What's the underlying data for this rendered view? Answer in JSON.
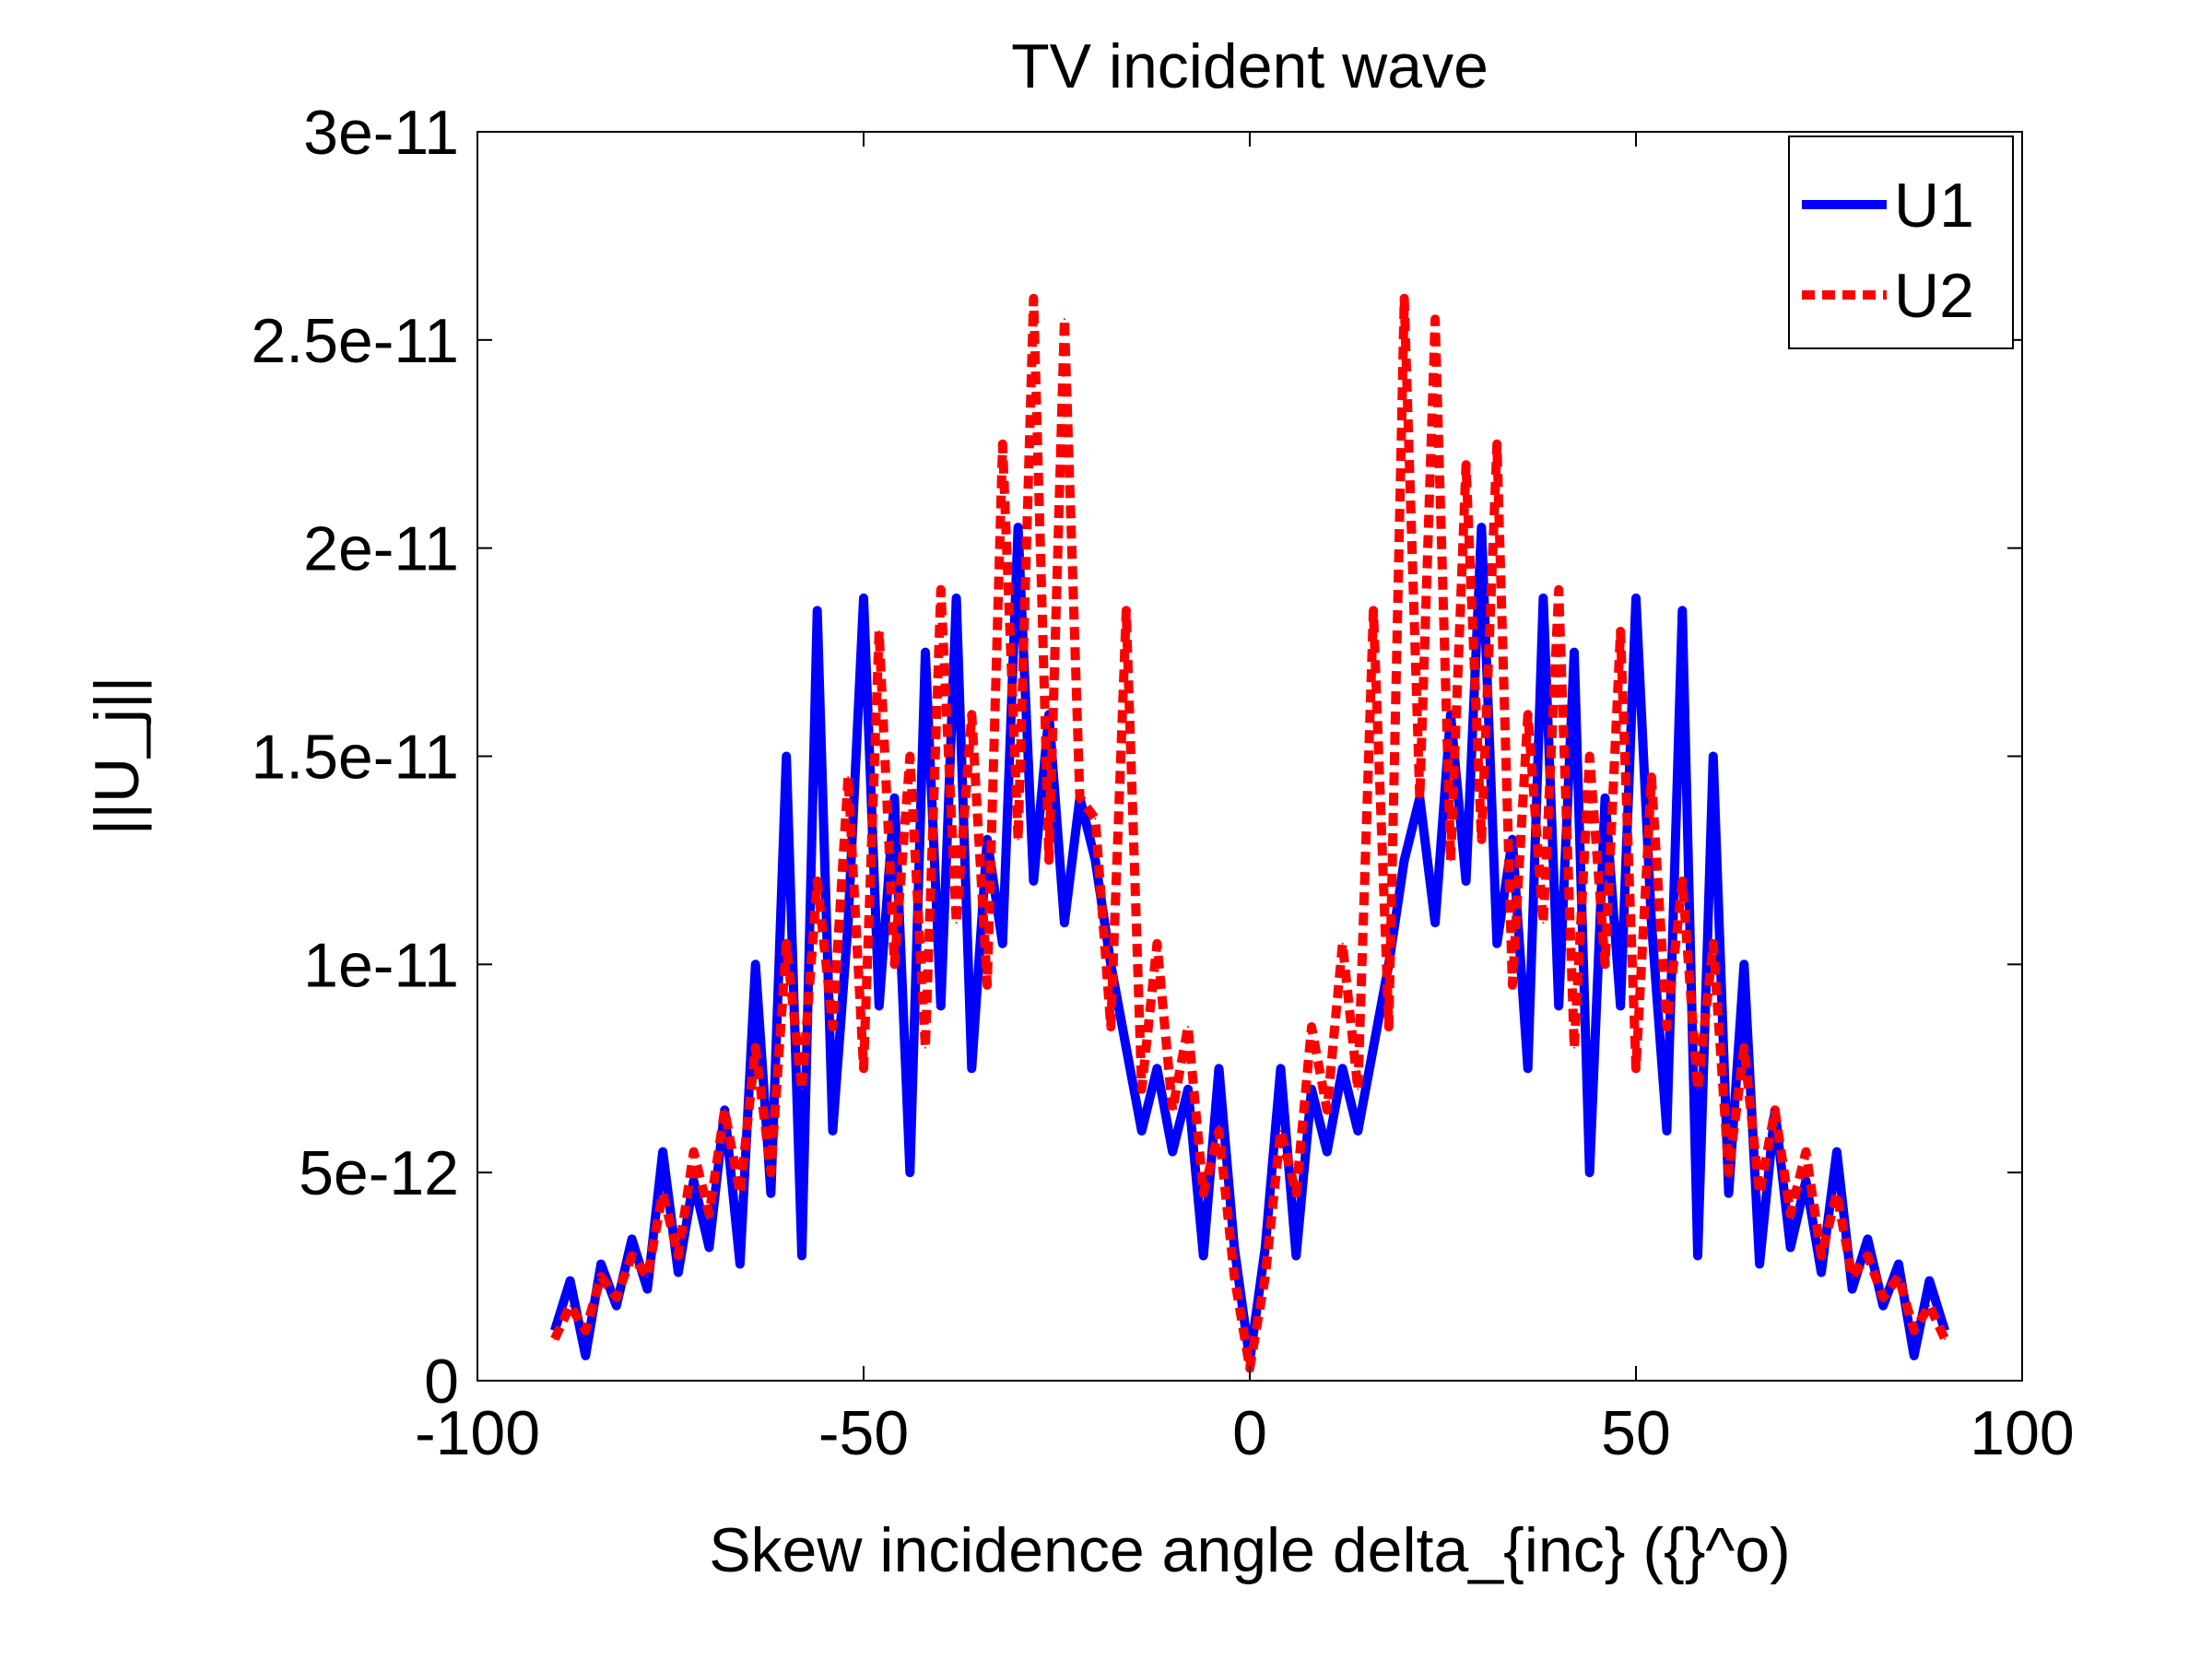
{
  "chart_data": {
    "type": "line",
    "title": "TV incident wave",
    "xlabel": "Skew incidence angle delta_{inc} ({}^o)",
    "ylabel": "||U_j||",
    "xlim": [
      -100,
      100
    ],
    "ylim": [
      0,
      3e-11
    ],
    "x_ticks": [
      -100,
      -50,
      0,
      50,
      100
    ],
    "x_tick_labels": [
      "-100",
      "-50",
      "0",
      "50",
      "100"
    ],
    "y_ticks": [
      0,
      5e-12,
      1e-11,
      1.5e-11,
      2e-11,
      2.5e-11,
      3e-11
    ],
    "y_tick_labels": [
      "0",
      "5e-12",
      "1e-11",
      "1.5e-11",
      "2e-11",
      "2.5e-11",
      "3e-11"
    ],
    "grid": false,
    "legend_position": "top-right",
    "x": [
      -90,
      -88,
      -86,
      -84,
      -82,
      -80,
      -78,
      -76,
      -74,
      -72,
      -70,
      -68,
      -66,
      -64,
      -62,
      -60,
      -58,
      -56,
      -54,
      -52,
      -50,
      -48,
      -46,
      -44,
      -42,
      -40,
      -38,
      -36,
      -34,
      -32,
      -30,
      -28,
      -26,
      -24,
      -22,
      -20,
      -18,
      -16,
      -14,
      -12,
      -10,
      -8,
      -6,
      -4,
      -2,
      0,
      2,
      4,
      6,
      8,
      10,
      12,
      14,
      16,
      18,
      20,
      22,
      24,
      26,
      28,
      30,
      32,
      34,
      36,
      38,
      40,
      42,
      44,
      46,
      48,
      50,
      52,
      54,
      56,
      58,
      60,
      62,
      64,
      66,
      68,
      70,
      72,
      74,
      76,
      78,
      80,
      82,
      84,
      86,
      88,
      90
    ],
    "series": [
      {
        "name": "U1",
        "color": "#0000ff",
        "style": "solid",
        "values": [
          1.2e-12,
          2.4e-12,
          6e-13,
          2.8e-12,
          1.8e-12,
          3.4e-12,
          2.2e-12,
          5.5e-12,
          2.6e-12,
          4.8e-12,
          3.2e-12,
          6.5e-12,
          2.8e-12,
          1e-11,
          4.5e-12,
          1.5e-11,
          3e-12,
          1.85e-11,
          6e-12,
          1.1e-11,
          1.88e-11,
          9e-12,
          1.4e-11,
          5e-12,
          1.75e-11,
          9e-12,
          1.88e-11,
          7.5e-12,
          1.3e-11,
          1.05e-11,
          2.05e-11,
          1.2e-11,
          1.6e-11,
          1.1e-11,
          1.4e-11,
          1.25e-11,
          1e-11,
          8e-12,
          6e-12,
          7.5e-12,
          5.5e-12,
          7e-12,
          3e-12,
          7.5e-12,
          3.2e-12,
          5e-13,
          3.2e-12,
          7.5e-12,
          3e-12,
          7e-12,
          5.5e-12,
          7.5e-12,
          6e-12,
          8e-12,
          1e-11,
          1.25e-11,
          1.4e-11,
          1.1e-11,
          1.6e-11,
          1.2e-11,
          2.05e-11,
          1.05e-11,
          1.3e-11,
          7.5e-12,
          1.88e-11,
          9e-12,
          1.75e-11,
          5e-12,
          1.4e-11,
          9e-12,
          1.88e-11,
          1.1e-11,
          6e-12,
          1.85e-11,
          3e-12,
          1.5e-11,
          4.5e-12,
          1e-11,
          2.8e-12,
          6.5e-12,
          3.2e-12,
          4.8e-12,
          2.6e-12,
          5.5e-12,
          2.2e-12,
          3.4e-12,
          1.8e-12,
          2.8e-12,
          6e-13,
          2.4e-12,
          1.2e-12
        ]
      },
      {
        "name": "U2",
        "color": "#ff0000",
        "style": "dashed",
        "values": [
          1e-12,
          1.8e-12,
          1.2e-12,
          2.5e-12,
          2e-12,
          3e-12,
          2.5e-12,
          4.5e-12,
          3e-12,
          5.5e-12,
          4e-12,
          6.5e-12,
          4.5e-12,
          8e-12,
          5e-12,
          1.05e-11,
          7e-12,
          1.2e-11,
          8.5e-12,
          1.45e-11,
          7.5e-12,
          1.8e-11,
          1e-11,
          1.5e-11,
          8e-12,
          1.9e-11,
          1.1e-11,
          1.6e-11,
          9.5e-12,
          2.25e-11,
          1.3e-11,
          2.6e-11,
          1.25e-11,
          2.55e-11,
          1.4e-11,
          1.35e-11,
          8.5e-12,
          1.85e-11,
          7e-12,
          1.05e-11,
          6.5e-12,
          8.5e-12,
          4.5e-12,
          6e-12,
          2.5e-12,
          3e-13,
          2.5e-12,
          6e-12,
          4.5e-12,
          8.5e-12,
          6.5e-12,
          1.05e-11,
          7e-12,
          1.85e-11,
          8.5e-12,
          2.6e-11,
          1.4e-11,
          2.55e-11,
          1.25e-11,
          2.2e-11,
          1.3e-11,
          2.25e-11,
          9.5e-12,
          1.6e-11,
          1.1e-11,
          1.9e-11,
          8e-12,
          1.5e-11,
          1e-11,
          1.8e-11,
          7.5e-12,
          1.45e-11,
          8.5e-12,
          1.2e-11,
          7e-12,
          1.05e-11,
          5e-12,
          8e-12,
          4.5e-12,
          6.5e-12,
          4e-12,
          5.5e-12,
          3e-12,
          4.5e-12,
          2.5e-12,
          3e-12,
          2e-12,
          2.5e-12,
          1.2e-12,
          1.8e-12,
          1e-12
        ]
      }
    ]
  }
}
